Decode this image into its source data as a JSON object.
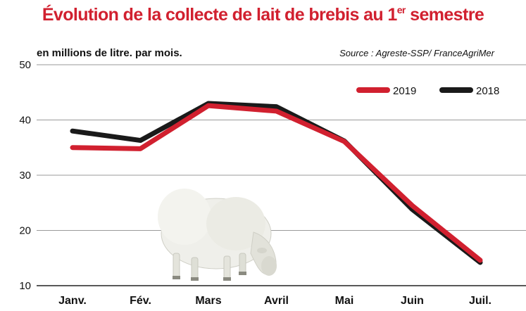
{
  "chart_data": {
    "type": "line",
    "title_main": "Évolution de la collecte de lait de brebis au 1",
    "title_sup": "er",
    "title_end": " semestre",
    "subtitle": "en millions de litre.  par mois.",
    "source": "Source : Agreste-SSP/ FranceAgriMer",
    "categories": [
      "Janv.",
      "Fév.",
      "Mars",
      "Avril",
      "Mai",
      "Juin",
      "Juil."
    ],
    "yticks": [
      "10",
      "20",
      "30",
      "40",
      "50"
    ],
    "ylim": [
      10,
      50
    ],
    "grid": true,
    "legend_position": "top-right",
    "series": [
      {
        "name": "2018",
        "color": "#1a1a1a",
        "values": [
          38.0,
          36.3,
          43.0,
          42.4,
          36.2,
          23.8,
          14.2
        ]
      },
      {
        "name": "2019",
        "color": "#d1202f",
        "values": [
          35.0,
          34.8,
          42.6,
          41.6,
          36.1,
          24.5,
          14.6
        ]
      }
    ]
  }
}
